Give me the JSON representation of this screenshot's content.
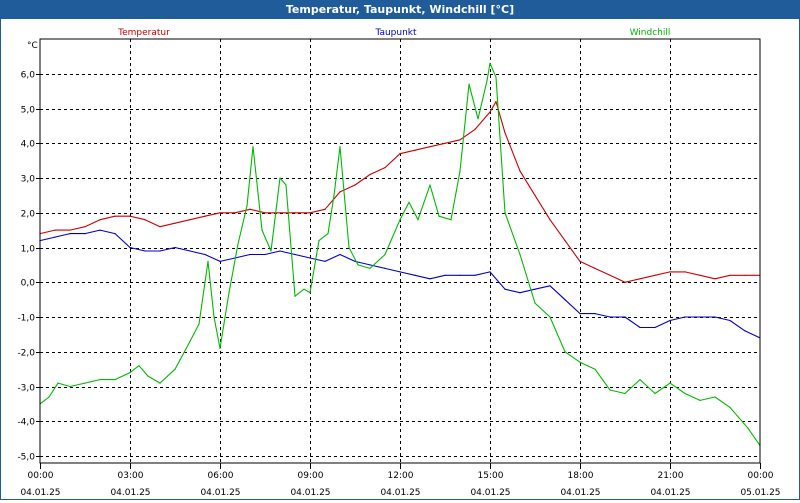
{
  "window": {
    "title": "Temperatur, Taupunkt, Windchill [°C]"
  },
  "chart_data": {
    "type": "line",
    "title": "Temperatur, Taupunkt, Windchill [°C]",
    "ylabel": "°C",
    "xlabel": "",
    "ylim": [
      -5.2,
      7.0
    ],
    "xlim": [
      0,
      24
    ],
    "yticks": [
      6.0,
      5.0,
      4.0,
      3.0,
      2.0,
      1.0,
      0.0,
      -1.0,
      -2.0,
      -3.0,
      -4.0,
      -5.0
    ],
    "ytick_labels": [
      "6,0",
      "5,0",
      "4,0",
      "3,0",
      "2,0",
      "1,0",
      "0,0",
      "-1,0",
      "-2,0",
      "-3,0",
      "-4,0",
      "-5,0"
    ],
    "xticks": [
      {
        "x": 0,
        "time": "00:00",
        "date": "04.01.25"
      },
      {
        "x": 3,
        "time": "03:00",
        "date": "04.01.25"
      },
      {
        "x": 6,
        "time": "06:00",
        "date": "04.01.25"
      },
      {
        "x": 9,
        "time": "09:00",
        "date": "04.01.25"
      },
      {
        "x": 12,
        "time": "12:00",
        "date": "04.01.25"
      },
      {
        "x": 15,
        "time": "15:00",
        "date": "04.01.25"
      },
      {
        "x": 18,
        "time": "18:00",
        "date": "04.01.25"
      },
      {
        "x": 21,
        "time": "21:00",
        "date": "04.01.25"
      },
      {
        "x": 24,
        "time": "00:00",
        "date": "05.01.25"
      }
    ],
    "grid": true,
    "legend": "top",
    "series": [
      {
        "name": "Temperatur",
        "color": "#cc0000",
        "x": [
          0,
          0.5,
          1,
          1.5,
          2,
          2.5,
          3,
          3.5,
          4,
          4.5,
          5,
          5.5,
          6,
          6.5,
          7,
          7.5,
          8,
          8.5,
          9,
          9.5,
          10,
          10.5,
          11,
          11.5,
          12,
          12.5,
          13,
          13.5,
          14,
          14.5,
          15,
          15.2,
          15.5,
          16,
          16.5,
          17,
          17.5,
          18,
          18.5,
          19,
          19.5,
          20,
          20.5,
          21,
          21.5,
          22,
          22.5,
          23,
          23.5,
          24
        ],
        "values": [
          1.4,
          1.5,
          1.5,
          1.6,
          1.8,
          1.9,
          1.9,
          1.8,
          1.6,
          1.7,
          1.8,
          1.9,
          2.0,
          2.0,
          2.1,
          2.0,
          2.0,
          2.0,
          2.0,
          2.1,
          2.6,
          2.8,
          3.1,
          3.3,
          3.7,
          3.8,
          3.9,
          4.0,
          4.1,
          4.4,
          4.9,
          5.2,
          4.3,
          3.2,
          2.5,
          1.8,
          1.2,
          0.6,
          0.4,
          0.2,
          0.0,
          0.1,
          0.2,
          0.3,
          0.3,
          0.2,
          0.1,
          0.2,
          0.2,
          0.2
        ]
      },
      {
        "name": "Taupunkt",
        "color": "#0000cc",
        "x": [
          0,
          0.5,
          1,
          1.5,
          2,
          2.5,
          3,
          3.5,
          4,
          4.5,
          5,
          5.5,
          6,
          6.5,
          7,
          7.5,
          8,
          8.5,
          9,
          9.5,
          10,
          10.5,
          11,
          11.5,
          12,
          12.5,
          13,
          13.5,
          14,
          14.5,
          15,
          15.5,
          16,
          16.5,
          17,
          17.5,
          18,
          18.5,
          19,
          19.5,
          20,
          20.5,
          21,
          21.5,
          22,
          22.5,
          23,
          23.5,
          24
        ],
        "values": [
          1.2,
          1.3,
          1.4,
          1.4,
          1.5,
          1.4,
          1.0,
          0.9,
          0.9,
          1.0,
          0.9,
          0.8,
          0.6,
          0.7,
          0.8,
          0.8,
          0.9,
          0.8,
          0.7,
          0.6,
          0.8,
          0.6,
          0.5,
          0.4,
          0.3,
          0.2,
          0.1,
          0.2,
          0.2,
          0.2,
          0.3,
          -0.2,
          -0.3,
          -0.2,
          -0.1,
          -0.5,
          -0.9,
          -0.9,
          -1.0,
          -1.0,
          -1.3,
          -1.3,
          -1.1,
          -1.0,
          -1.0,
          -1.0,
          -1.1,
          -1.4,
          -1.6
        ]
      },
      {
        "name": "Windchill",
        "color": "#00bb00",
        "x": [
          0,
          0.3,
          0.6,
          1,
          1.5,
          2,
          2.5,
          3,
          3.3,
          3.6,
          4,
          4.5,
          5,
          5.3,
          5.6,
          5.8,
          6.0,
          6.3,
          6.6,
          6.9,
          7.1,
          7.4,
          7.7,
          8.0,
          8.2,
          8.5,
          8.8,
          9.0,
          9.3,
          9.6,
          9.8,
          10.0,
          10.3,
          10.6,
          11.0,
          11.5,
          12.0,
          12.3,
          12.6,
          13.0,
          13.3,
          13.7,
          14.0,
          14.3,
          14.6,
          14.9,
          15.0,
          15.2,
          15.5,
          16.0,
          16.5,
          17.0,
          17.5,
          18.0,
          18.5,
          19.0,
          19.5,
          20.0,
          20.5,
          21.0,
          21.5,
          22.0,
          22.5,
          23.0,
          23.3,
          23.6,
          24.0
        ],
        "values": [
          -3.5,
          -3.3,
          -2.9,
          -3.0,
          -2.9,
          -2.8,
          -2.8,
          -2.6,
          -2.4,
          -2.7,
          -2.9,
          -2.5,
          -1.7,
          -1.2,
          0.6,
          -1.0,
          -1.9,
          -0.3,
          1.1,
          2.2,
          3.9,
          1.5,
          0.9,
          3.0,
          2.8,
          -0.4,
          -0.2,
          -0.3,
          1.2,
          1.4,
          2.5,
          3.9,
          1.0,
          0.5,
          0.4,
          0.8,
          1.8,
          2.3,
          1.8,
          2.8,
          1.9,
          1.8,
          3.2,
          5.7,
          4.7,
          5.8,
          6.3,
          5.9,
          2.0,
          0.8,
          -0.6,
          -1.0,
          -2.0,
          -2.3,
          -2.5,
          -3.1,
          -3.2,
          -2.8,
          -3.2,
          -2.9,
          -3.2,
          -3.4,
          -3.3,
          -3.6,
          -3.9,
          -4.2,
          -4.7
        ]
      }
    ]
  }
}
